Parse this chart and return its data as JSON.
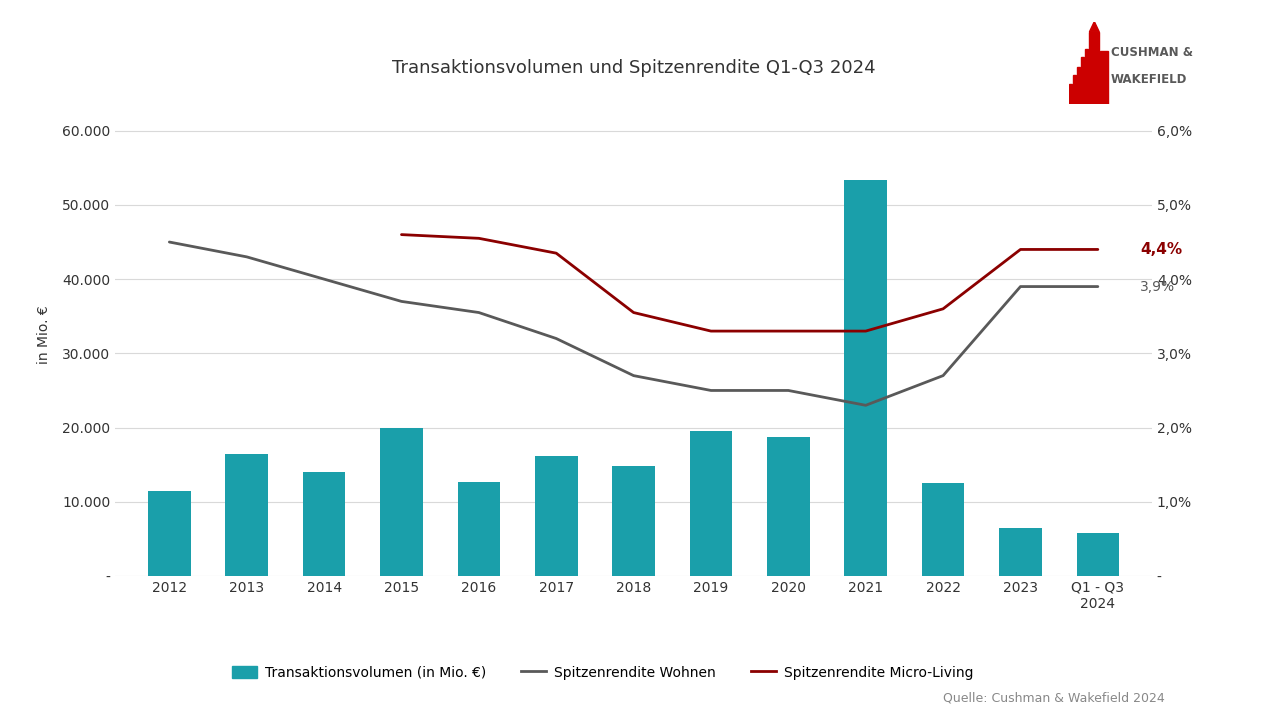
{
  "title": "Transaktionsvolumen und Spitzenrendite Q1-Q3 2024",
  "years": [
    "2012",
    "2013",
    "2014",
    "2015",
    "2016",
    "2017",
    "2018",
    "2019",
    "2020",
    "2021",
    "2022",
    "2023",
    "Q1 - Q3\n2024"
  ],
  "bar_values": [
    11500,
    16400,
    14000,
    20000,
    12700,
    16200,
    14800,
    19600,
    18700,
    53300,
    12500,
    6500,
    5800
  ],
  "rendite_wohnen": [
    4.5,
    4.3,
    4.0,
    3.7,
    3.55,
    3.2,
    2.7,
    2.5,
    2.5,
    2.3,
    2.7,
    3.9,
    3.9
  ],
  "rendite_micro_full": [
    null,
    null,
    null,
    4.6,
    4.55,
    4.35,
    3.55,
    3.3,
    3.3,
    3.3,
    3.6,
    4.4,
    4.4
  ],
  "bar_color": "#1a9faa",
  "line_wohnen_color": "#595959",
  "line_micro_color": "#8b0000",
  "ylabel_left": "in Mio. €",
  "ylim_left": [
    0,
    65000
  ],
  "ylim_right": [
    0,
    0.065
  ],
  "yticks_left": [
    0,
    10000,
    20000,
    30000,
    40000,
    50000,
    60000
  ],
  "ytick_labels_left": [
    "-",
    "10.000",
    "20.000",
    "30.000",
    "40.000",
    "50.000",
    "60.000"
  ],
  "yticks_right": [
    0,
    0.01,
    0.02,
    0.03,
    0.04,
    0.05,
    0.06
  ],
  "ytick_labels_right": [
    "-",
    "1,0%",
    "2,0%",
    "3,0%",
    "4,0%",
    "5,0%",
    "6,0%"
  ],
  "annotation_micro_label": "4,4%",
  "annotation_wohnen_label": "3,9%",
  "source": "Quelle: Cushman & Wakefield 2024",
  "background_color": "#ffffff",
  "grid_color": "#d9d9d9",
  "logo_text_color": "#595959",
  "logo_red": "#cc0000"
}
